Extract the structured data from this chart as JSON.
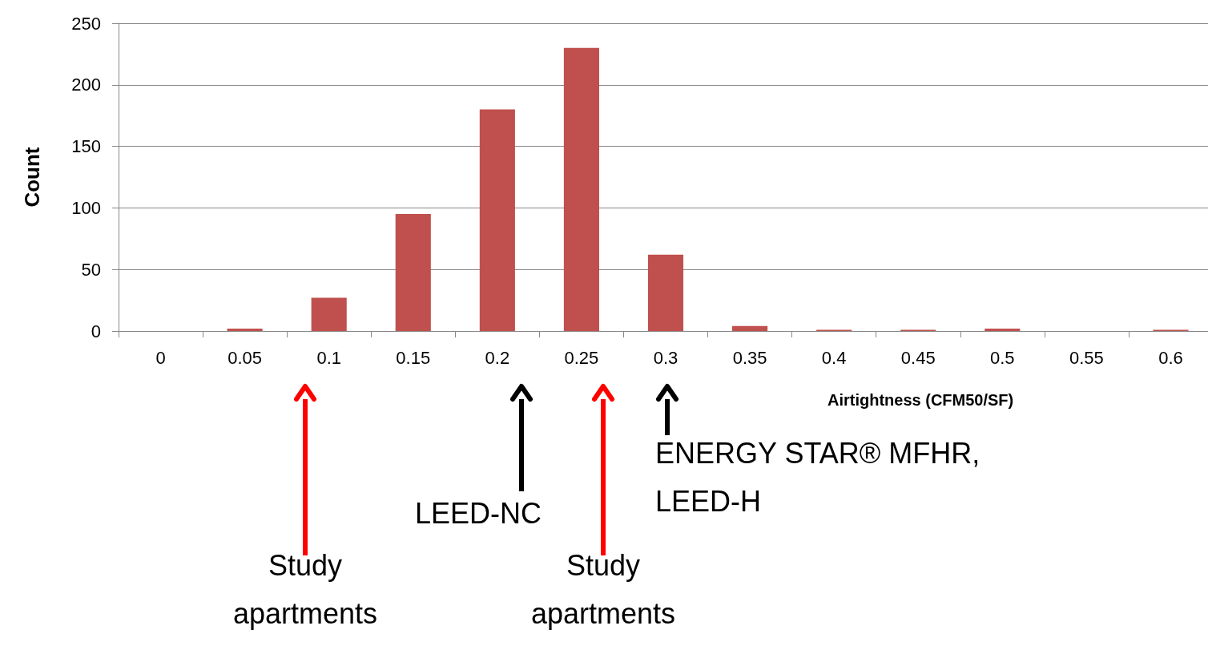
{
  "chart_data": {
    "type": "bar",
    "xlabel": "Airtightness (CFM50/SF)",
    "ylabel": "Count",
    "categories": [
      "0",
      "0.05",
      "0.1",
      "0.15",
      "0.2",
      "0.25",
      "0.3",
      "0.35",
      "0.4",
      "0.45",
      "0.5",
      "0.55",
      "0.6"
    ],
    "values": [
      0,
      2,
      27,
      95,
      180,
      230,
      62,
      4,
      1,
      1,
      2,
      0,
      1
    ],
    "color": "#c0504d",
    "ylim": [
      0,
      250
    ],
    "yticks": [
      0,
      50,
      100,
      150,
      200,
      250
    ],
    "grid": "y",
    "annotations": [
      "Study apartments",
      "LEED-NC",
      "Study apartments",
      "ENERGY STAR® MFHR, LEED-H"
    ]
  }
}
